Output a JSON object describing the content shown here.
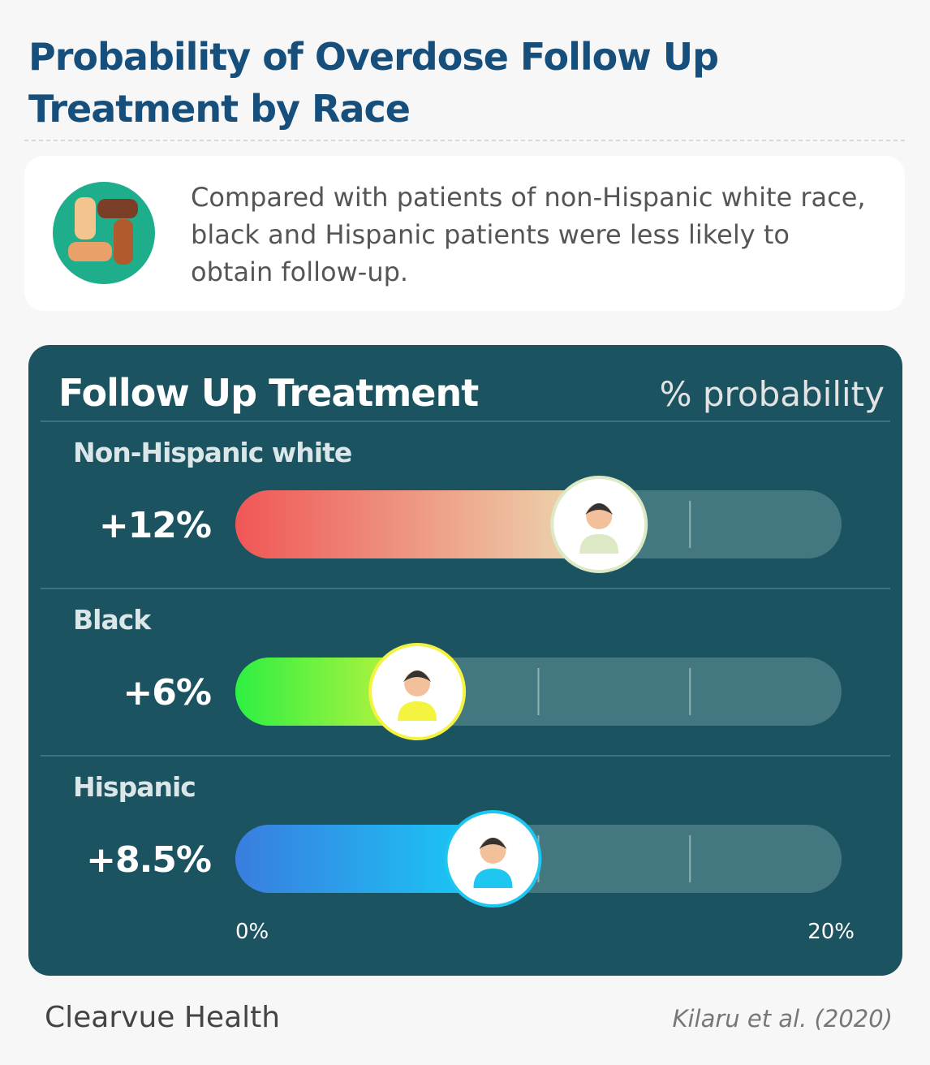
{
  "header": {
    "title": "Probability of Overdose Follow Up Treatment by Race"
  },
  "summary": {
    "text": "Compared with patients of non-Hispanic white race, black and Hispanic patients were less likely to obtain follow-up."
  },
  "chart_data": {
    "type": "bar",
    "orientation": "horizontal",
    "title": "Follow Up Treatment",
    "subtitle": "% probability",
    "categories": [
      "Non-Hispanic white",
      "Black",
      "Hispanic"
    ],
    "values": [
      12,
      6,
      8.5
    ],
    "value_labels": [
      "+12%",
      "+6%",
      "+8.5%"
    ],
    "colors": [
      [
        "#f05656",
        "#ecdcb2"
      ],
      [
        "#2df042",
        "#c6f23e"
      ],
      [
        "#3a7ddf",
        "#17cdf7"
      ]
    ],
    "marker_colors": [
      "#dce9c4",
      "#f3f340",
      "#1fc6ef"
    ],
    "xlim": [
      0,
      20
    ],
    "xticks": [
      {
        "value": 0,
        "label": "0%"
      },
      {
        "value": 20,
        "label": "20%"
      }
    ],
    "minor_xticks": [
      5,
      10,
      15
    ]
  },
  "footer": {
    "brand": "Clearvue Health",
    "source": "Kilaru et al. (2020)"
  }
}
